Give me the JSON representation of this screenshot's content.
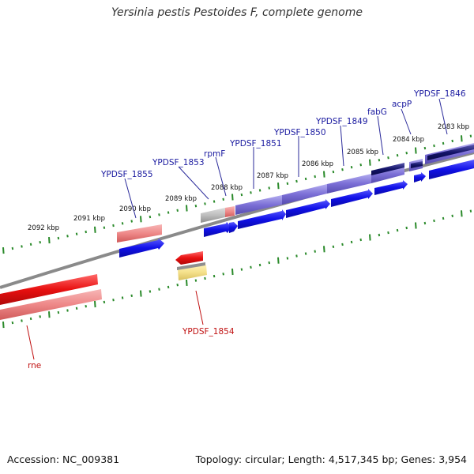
{
  "title": "Yersinia pestis Pestoides F, complete genome",
  "footer": {
    "accession": "Accession: NC_009381",
    "summary": "Topology: circular; Length: 4,517,345 bp; Genes: 3,954"
  },
  "colors": {
    "backbone": "#8a8a8a",
    "tick": "#2a8a2a",
    "plus_cds": "#1010e8",
    "minus_cds": "#e81010",
    "plus_feature": "#7b6fd6",
    "minus_feature": "#ee8888",
    "label_plus": "#1a1aa0",
    "label_minus": "#c01010"
  },
  "tick_labels": [
    "2083 kbp",
    "2084 kbp",
    "2085 kbp",
    "2086 kbp",
    "2087 kbp",
    "2088 kbp",
    "2089 kbp",
    "2090 kbp",
    "2091 kbp",
    "2092 kbp"
  ],
  "gene_labels": [
    {
      "name": "YPDSF_1846",
      "strand": "plus"
    },
    {
      "name": "acpP",
      "strand": "plus"
    },
    {
      "name": "fabG",
      "strand": "plus"
    },
    {
      "name": "YPDSF_1849",
      "strand": "plus"
    },
    {
      "name": "YPDSF_1850",
      "strand": "plus"
    },
    {
      "name": "YPDSF_1851",
      "strand": "plus"
    },
    {
      "name": "rpmF",
      "strand": "plus"
    },
    {
      "name": "YPDSF_1853",
      "strand": "plus"
    },
    {
      "name": "YPDSF_1855",
      "strand": "plus"
    },
    {
      "name": "YPDSF_1854",
      "strand": "minus"
    },
    {
      "name": "rne",
      "strand": "minus"
    }
  ]
}
